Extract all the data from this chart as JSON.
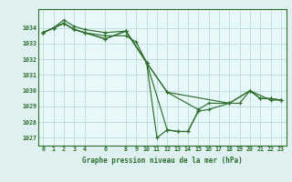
{
  "background_color": "#dff0f0",
  "plot_bg_color": "#e8f8f8",
  "grid_color": "#c0dede",
  "line_color": "#2d6e2d",
  "title": "Graphe pression niveau de la mer (hPa)",
  "xlim": [
    -0.5,
    23.5
  ],
  "ylim": [
    1026.5,
    1035.2
  ],
  "yticks": [
    1027,
    1028,
    1029,
    1030,
    1031,
    1032,
    1033,
    1034
  ],
  "xticks": [
    0,
    1,
    2,
    3,
    4,
    6,
    8,
    9,
    10,
    11,
    12,
    13,
    14,
    15,
    16,
    17,
    18,
    19,
    20,
    21,
    22,
    23
  ],
  "series_clean": [
    {
      "x": [
        0,
        1,
        2,
        3,
        4,
        6,
        8,
        10,
        11,
        12,
        13,
        14,
        15
      ],
      "y": [
        1033.7,
        1034.0,
        1034.5,
        1034.1,
        1033.9,
        1033.7,
        1033.8,
        1031.8,
        1027.0,
        1027.5,
        1027.4,
        1027.4,
        1028.7
      ]
    },
    {
      "x": [
        0,
        1,
        2,
        3,
        4,
        6,
        8,
        9,
        10,
        12,
        13,
        14,
        15,
        16,
        18,
        20,
        22,
        23
      ],
      "y": [
        1033.7,
        1034.0,
        1034.3,
        1033.9,
        1033.7,
        1033.5,
        1033.5,
        1033.1,
        1031.8,
        1027.5,
        1027.4,
        1027.4,
        1028.7,
        1028.8,
        1029.2,
        1030.0,
        1029.4,
        1029.4
      ]
    },
    {
      "x": [
        0,
        1,
        2,
        3,
        4,
        6,
        8,
        10,
        12,
        15,
        16,
        18,
        19,
        20,
        21,
        22,
        23
      ],
      "y": [
        1033.7,
        1034.0,
        1034.3,
        1033.9,
        1033.7,
        1033.3,
        1033.8,
        1031.8,
        1029.9,
        1028.8,
        1029.2,
        1029.2,
        1029.2,
        1030.0,
        1029.5,
        1029.5,
        1029.4
      ]
    },
    {
      "x": [
        0,
        1,
        2,
        3,
        4,
        6,
        8,
        10,
        12,
        18,
        20,
        21,
        22,
        23
      ],
      "y": [
        1033.7,
        1034.0,
        1034.3,
        1033.9,
        1033.7,
        1033.3,
        1033.8,
        1031.8,
        1029.9,
        1029.2,
        1030.0,
        1029.5,
        1029.5,
        1029.4
      ]
    }
  ],
  "figsize": [
    3.2,
    2.0
  ],
  "dpi": 100
}
